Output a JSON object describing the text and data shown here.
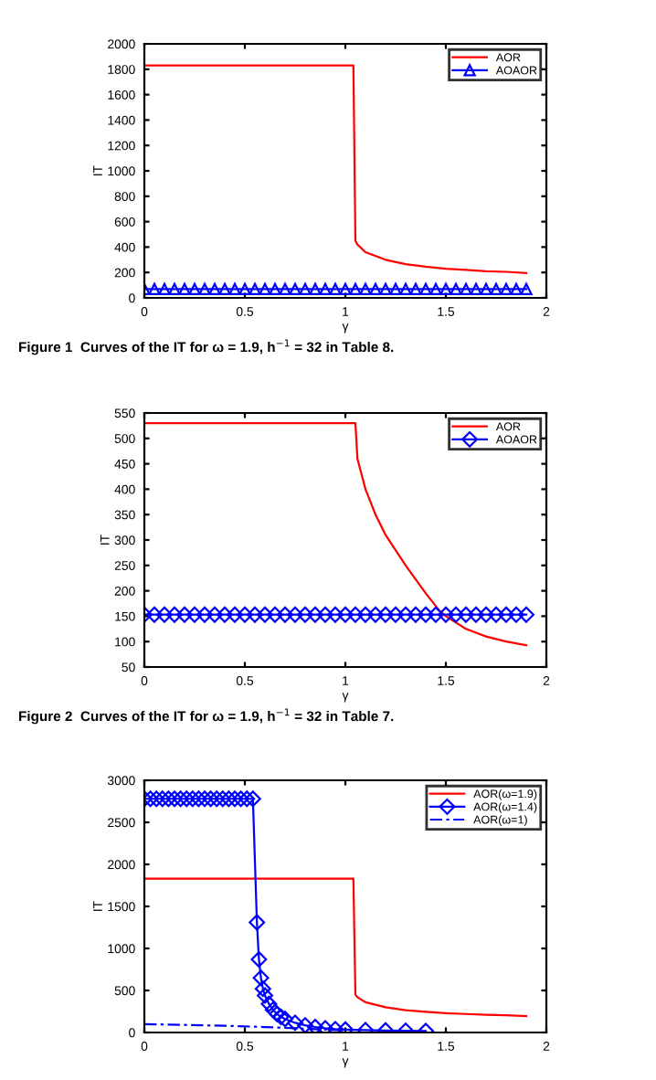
{
  "chart_data": [
    {
      "type": "line",
      "xlabel": "γ",
      "ylabel": "IT",
      "xlim": [
        0,
        2
      ],
      "xticks": [
        0,
        0.5,
        1,
        1.5,
        2
      ],
      "ylim": [
        0,
        2000
      ],
      "yticks": [
        0,
        200,
        400,
        600,
        800,
        1000,
        1200,
        1400,
        1600,
        1800,
        2000
      ],
      "grid": false,
      "legend": "top right",
      "annotations": [
        "Figure 1  Curves of the IT for ω = 1.9, h$^{−1}$ = 32 in Table 8."
      ],
      "series": [
        {
          "name": "AOR",
          "color": "#ff0000",
          "marker": "none",
          "line_style": "solid",
          "x": [
            0,
            1.04,
            1.05,
            1.06,
            1.1,
            1.2,
            1.3,
            1.4,
            1.5,
            1.6,
            1.7,
            1.8,
            1.9
          ],
          "values": [
            1830,
            1830,
            450,
            420,
            360,
            300,
            265,
            245,
            230,
            220,
            210,
            205,
            195
          ]
        },
        {
          "name": "AOAOR",
          "color": "#0000ff",
          "marker": "triangle",
          "line_style": "solid",
          "x": [
            0,
            0.05,
            0.1,
            0.15,
            0.2,
            0.25,
            0.3,
            0.35,
            0.4,
            0.45,
            0.5,
            0.55,
            0.6,
            0.65,
            0.7,
            0.75,
            0.8,
            0.85,
            0.9,
            0.95,
            1,
            1.05,
            1.1,
            1.15,
            1.2,
            1.25,
            1.3,
            1.35,
            1.4,
            1.45,
            1.5,
            1.55,
            1.6,
            1.65,
            1.7,
            1.75,
            1.8,
            1.85,
            1.9
          ],
          "values": [
            70,
            70,
            70,
            70,
            70,
            70,
            70,
            70,
            70,
            70,
            70,
            70,
            70,
            70,
            70,
            70,
            70,
            70,
            70,
            70,
            70,
            70,
            70,
            70,
            70,
            70,
            70,
            70,
            70,
            70,
            70,
            70,
            70,
            70,
            70,
            70,
            70,
            70,
            70
          ]
        }
      ]
    },
    {
      "type": "line",
      "xlabel": "γ",
      "ylabel": "IT",
      "xlim": [
        0,
        2
      ],
      "xticks": [
        0,
        0.5,
        1,
        1.5,
        2
      ],
      "ylim": [
        50,
        550
      ],
      "yticks": [
        50,
        100,
        150,
        200,
        250,
        300,
        350,
        400,
        450,
        500,
        550
      ],
      "grid": false,
      "legend": "top right",
      "annotations": [
        "Figure 2  Curves of the IT for ω = 1.9, h$^{−1}$ = 32 in Table 7."
      ],
      "series": [
        {
          "name": "AOR",
          "color": "#ff0000",
          "marker": "none",
          "line_style": "solid",
          "x": [
            0,
            1.05,
            1.06,
            1.1,
            1.15,
            1.2,
            1.3,
            1.4,
            1.47,
            1.5,
            1.6,
            1.7,
            1.8,
            1.9
          ],
          "values": [
            530,
            530,
            460,
            400,
            350,
            310,
            250,
            195,
            160,
            150,
            125,
            110,
            100,
            93
          ]
        },
        {
          "name": "AOAOR",
          "color": "#0000ff",
          "marker": "diamond",
          "line_style": "solid",
          "x": [
            0,
            0.05,
            0.1,
            0.15,
            0.2,
            0.25,
            0.3,
            0.35,
            0.4,
            0.45,
            0.5,
            0.55,
            0.6,
            0.65,
            0.7,
            0.75,
            0.8,
            0.85,
            0.9,
            0.95,
            1,
            1.05,
            1.1,
            1.15,
            1.2,
            1.25,
            1.3,
            1.35,
            1.4,
            1.45,
            1.5,
            1.55,
            1.6,
            1.65,
            1.7,
            1.75,
            1.8,
            1.85,
            1.9
          ],
          "values": [
            153,
            153,
            153,
            153,
            153,
            153,
            153,
            153,
            153,
            153,
            153,
            153,
            153,
            153,
            153,
            153,
            153,
            153,
            153,
            153,
            153,
            153,
            153,
            153,
            153,
            153,
            153,
            153,
            153,
            153,
            153,
            153,
            153,
            153,
            153,
            153,
            153,
            153,
            153
          ]
        }
      ]
    },
    {
      "type": "line",
      "xlabel": "γ",
      "ylabel": "IT",
      "xlim": [
        0,
        2
      ],
      "xticks": [
        0,
        0.5,
        1,
        1.5,
        2
      ],
      "ylim": [
        0,
        3000
      ],
      "yticks": [
        0,
        500,
        1000,
        1500,
        2000,
        2500,
        3000
      ],
      "grid": false,
      "legend": "top right",
      "series": [
        {
          "name": "AOR(ω=1.9)",
          "color": "#ff0000",
          "marker": "none",
          "line_style": "solid",
          "x": [
            0,
            1.04,
            1.05,
            1.06,
            1.1,
            1.2,
            1.3,
            1.4,
            1.5,
            1.6,
            1.7,
            1.8,
            1.9
          ],
          "values": [
            1830,
            1830,
            450,
            420,
            360,
            300,
            265,
            245,
            230,
            220,
            210,
            205,
            195
          ]
        },
        {
          "name": "AOR(ω=1.4)",
          "color": "#0000ff",
          "marker": "diamond",
          "line_style": "solid",
          "x": [
            0,
            0.03,
            0.06,
            0.09,
            0.12,
            0.15,
            0.18,
            0.21,
            0.24,
            0.27,
            0.3,
            0.33,
            0.36,
            0.39,
            0.42,
            0.45,
            0.48,
            0.51,
            0.54,
            0.56,
            0.57,
            0.58,
            0.59,
            0.6,
            0.62,
            0.64,
            0.66,
            0.68,
            0.7,
            0.75,
            0.8,
            0.85,
            0.9,
            0.95,
            1,
            1.1,
            1.2,
            1.3,
            1.4
          ],
          "values": [
            2780,
            2780,
            2780,
            2780,
            2780,
            2780,
            2780,
            2780,
            2780,
            2780,
            2780,
            2780,
            2780,
            2780,
            2780,
            2780,
            2780,
            2780,
            2780,
            1310,
            870,
            650,
            520,
            440,
            340,
            270,
            220,
            185,
            160,
            115,
            85,
            65,
            50,
            40,
            35,
            28,
            24,
            21,
            18
          ]
        },
        {
          "name": "AOR(ω=1)",
          "color": "#0000ff",
          "marker": "none",
          "line_style": "dashed",
          "x": [
            0,
            0.2,
            0.4,
            0.6,
            0.8,
            1.0
          ],
          "values": [
            100,
            90,
            80,
            65,
            45,
            25
          ]
        }
      ]
    }
  ]
}
